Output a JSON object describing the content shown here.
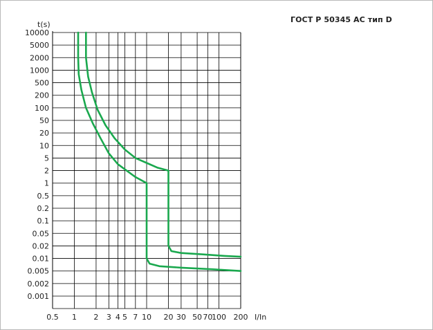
{
  "chart_data": {
    "type": "line",
    "title": "ГОСТ Р 50345  АС тип    D",
    "ylabel": "t(s)",
    "xlabel": "I/In",
    "x_scale": "log",
    "y_scale": "log",
    "xlim": [
      0.5,
      200
    ],
    "ylim": [
      0.001,
      10000
    ],
    "grid": true,
    "y_ticks": [
      {
        "value": 10000,
        "label": "10000"
      },
      {
        "value": 5000,
        "label": "5000"
      },
      {
        "value": 2000,
        "label": "2000"
      },
      {
        "value": 1000,
        "label": "1000"
      },
      {
        "value": 500,
        "label": "500"
      },
      {
        "value": 200,
        "label": "200"
      },
      {
        "value": 100,
        "label": "100"
      },
      {
        "value": 50,
        "label": "50"
      },
      {
        "value": 20,
        "label": "20"
      },
      {
        "value": 10,
        "label": "10"
      },
      {
        "value": 5,
        "label": "5"
      },
      {
        "value": 2,
        "label": "2"
      },
      {
        "value": 1,
        "label": "1"
      },
      {
        "value": 0.5,
        "label": "0.5"
      },
      {
        "value": 0.2,
        "label": "0.2"
      },
      {
        "value": 0.1,
        "label": "0.1"
      },
      {
        "value": 0.05,
        "label": "0.05"
      },
      {
        "value": 0.02,
        "label": "0.02"
      },
      {
        "value": 0.01,
        "label": "0.01"
      },
      {
        "value": 0.005,
        "label": "0.005"
      },
      {
        "value": 0.002,
        "label": "0.002"
      },
      {
        "value": 0.001,
        "label": "0.001"
      }
    ],
    "x_ticks": [
      {
        "value": 0.5,
        "label": "0.5"
      },
      {
        "value": 1,
        "label": "1"
      },
      {
        "value": 2,
        "label": "2"
      },
      {
        "value": 3,
        "label": "3"
      },
      {
        "value": 4,
        "label": "4"
      },
      {
        "value": 5,
        "label": "5"
      },
      {
        "value": 7,
        "label": "7"
      },
      {
        "value": 10,
        "label": "10"
      },
      {
        "value": 20,
        "label": "20"
      },
      {
        "value": 30,
        "label": "30"
      },
      {
        "value": 50,
        "label": "50"
      },
      {
        "value": 70,
        "label": "70"
      },
      {
        "value": 100,
        "label": "100"
      },
      {
        "value": 200,
        "label": "200"
      }
    ],
    "series_color": "#1aa84e",
    "series": [
      {
        "points": [
          [
            1.13,
            10000
          ],
          [
            1.13,
            2000
          ],
          [
            1.15,
            800
          ],
          [
            1.25,
            300
          ],
          [
            1.45,
            100
          ],
          [
            1.8,
            40
          ],
          [
            2.3,
            15
          ],
          [
            3.0,
            6.5
          ],
          [
            4.0,
            3.2
          ],
          [
            5.5,
            1.9
          ],
          [
            7.0,
            1.4
          ],
          [
            10,
            1
          ],
          [
            10,
            0.01
          ],
          [
            11,
            0.0075
          ],
          [
            15,
            0.0065
          ],
          [
            30,
            0.006
          ],
          [
            80,
            0.0055
          ],
          [
            200,
            0.005
          ]
        ]
      },
      {
        "points": [
          [
            1.45,
            10000
          ],
          [
            1.45,
            2000
          ],
          [
            1.55,
            700
          ],
          [
            1.75,
            250
          ],
          [
            2.1,
            90
          ],
          [
            2.7,
            35
          ],
          [
            3.6,
            15
          ],
          [
            5.0,
            8
          ],
          [
            7.0,
            5
          ],
          [
            10,
            3.5
          ],
          [
            14,
            2.5
          ],
          [
            20,
            2
          ],
          [
            20,
            0.02
          ],
          [
            22,
            0.015
          ],
          [
            30,
            0.0135
          ],
          [
            60,
            0.0125
          ],
          [
            120,
            0.0115
          ],
          [
            200,
            0.011
          ]
        ]
      }
    ]
  }
}
